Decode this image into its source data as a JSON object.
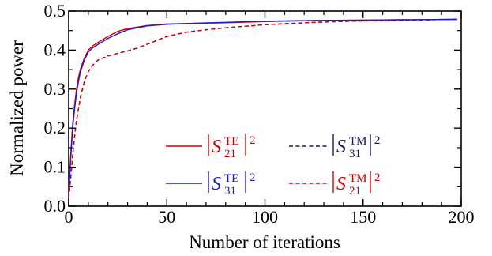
{
  "chart_data": {
    "type": "line",
    "xlabel": "Number of iterations",
    "ylabel": "Normalized power",
    "xlim": [
      0,
      200
    ],
    "ylim": [
      0,
      0.5
    ],
    "xticks": [
      0,
      50,
      100,
      150,
      200
    ],
    "yticks": [
      0.0,
      0.1,
      0.2,
      0.3,
      0.4,
      0.5
    ],
    "xtick_labels": [
      "0",
      "50",
      "100",
      "150",
      "200"
    ],
    "ytick_labels": [
      "0.0",
      "0.1",
      "0.2",
      "0.3",
      "0.4",
      "0.5"
    ],
    "grid": false,
    "legend_position": "lower-right",
    "series": [
      {
        "name": "|S21TE|2",
        "label_sub": "21",
        "label_sup": "TE",
        "color": "#d40000",
        "dash": "solid",
        "x": [
          0,
          1,
          2,
          3,
          4,
          5,
          6,
          8,
          10,
          12,
          15,
          20,
          25,
          30,
          40,
          50,
          60,
          80,
          100,
          125,
          150,
          175,
          198
        ],
        "y": [
          0.03,
          0.13,
          0.21,
          0.26,
          0.3,
          0.33,
          0.352,
          0.38,
          0.4,
          0.41,
          0.42,
          0.435,
          0.448,
          0.455,
          0.463,
          0.467,
          0.468,
          0.47,
          0.473,
          0.476,
          0.477,
          0.478,
          0.479
        ]
      },
      {
        "name": "|S31TE|2",
        "label_sub": "31",
        "label_sup": "TE",
        "color": "#1a1ad6",
        "dash": "solid",
        "x": [
          0,
          1,
          2,
          3,
          4,
          5,
          6,
          8,
          10,
          12,
          15,
          20,
          25,
          30,
          40,
          50,
          60,
          80,
          100,
          125,
          150,
          175,
          198
        ],
        "y": [
          0.03,
          0.12,
          0.2,
          0.25,
          0.29,
          0.32,
          0.345,
          0.375,
          0.395,
          0.405,
          0.415,
          0.43,
          0.442,
          0.452,
          0.462,
          0.466,
          0.468,
          0.471,
          0.474,
          0.476,
          0.477,
          0.478,
          0.479
        ]
      },
      {
        "name": "|S31TM|2",
        "label_sub": "31",
        "label_sup": "TM",
        "color": "#1a1a5c",
        "dash": "dashed",
        "x": [
          0,
          1,
          2,
          3,
          4,
          5,
          6,
          8,
          10,
          12,
          15,
          20,
          25,
          30,
          35,
          40,
          50,
          60,
          70,
          80,
          100,
          125,
          150,
          175,
          198
        ],
        "y": [
          0.02,
          0.07,
          0.13,
          0.18,
          0.22,
          0.25,
          0.28,
          0.32,
          0.345,
          0.36,
          0.375,
          0.385,
          0.392,
          0.398,
          0.405,
          0.415,
          0.435,
          0.446,
          0.452,
          0.457,
          0.465,
          0.471,
          0.475,
          0.477,
          0.479
        ]
      },
      {
        "name": "|S21TM|2",
        "label_sub": "21",
        "label_sup": "TM",
        "color": "#d40000",
        "dash": "dashed",
        "x": [
          0,
          1,
          2,
          3,
          4,
          5,
          6,
          8,
          10,
          12,
          15,
          20,
          25,
          30,
          35,
          40,
          50,
          60,
          70,
          80,
          100,
          125,
          150,
          175,
          198
        ],
        "y": [
          0.02,
          0.07,
          0.13,
          0.18,
          0.22,
          0.25,
          0.28,
          0.32,
          0.345,
          0.36,
          0.375,
          0.385,
          0.392,
          0.398,
          0.405,
          0.415,
          0.435,
          0.446,
          0.452,
          0.457,
          0.465,
          0.471,
          0.475,
          0.477,
          0.479
        ]
      }
    ]
  }
}
